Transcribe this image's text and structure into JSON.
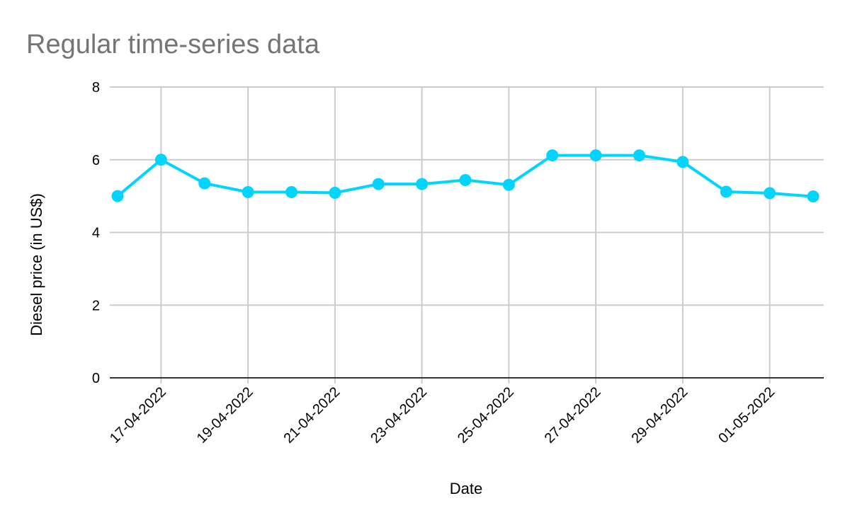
{
  "chart_data": {
    "type": "line",
    "title": "Regular time-series data",
    "xlabel": "Date",
    "ylabel": "Diesel price (in US$)",
    "ylim": [
      0,
      8
    ],
    "yticks": [
      "0",
      "2",
      "4",
      "6",
      "8"
    ],
    "x_ticks": [
      "17-04-2022",
      "19-04-2022",
      "21-04-2022",
      "23-04-2022",
      "25-04-2022",
      "27-04-2022",
      "29-04-2022",
      "01-05-2022"
    ],
    "x": [
      "16-04-2022",
      "17-04-2022",
      "18-04-2022",
      "19-04-2022",
      "20-04-2022",
      "21-04-2022",
      "22-04-2022",
      "23-04-2022",
      "24-04-2022",
      "25-04-2022",
      "26-04-2022",
      "27-04-2022",
      "28-04-2022",
      "29-04-2022",
      "30-04-2022",
      "01-05-2022",
      "02-05-2022"
    ],
    "series": [
      {
        "values": [
          5.0,
          6.0,
          5.35,
          5.11,
          5.11,
          5.09,
          5.33,
          5.33,
          5.44,
          5.31,
          6.12,
          6.12,
          6.12,
          5.94,
          5.12,
          5.08,
          4.99
        ],
        "color": "#00d4ff"
      }
    ],
    "grid": true,
    "legend": "none"
  }
}
